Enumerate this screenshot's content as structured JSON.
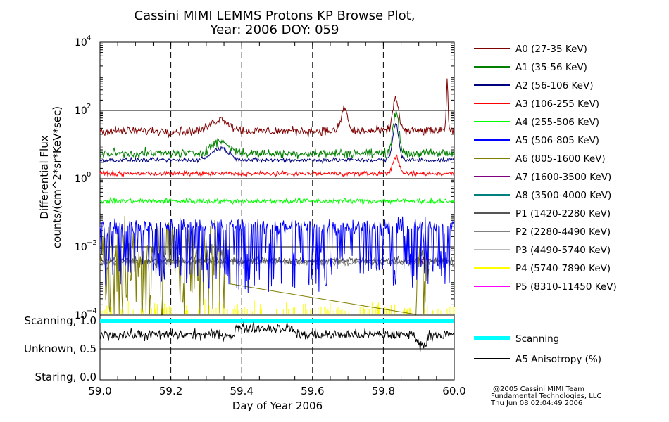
{
  "chart_data": {
    "type": "line",
    "title": "Cassini MIMI LEMMS Protons KP Browse Plot,",
    "subtitle": "Year: 2006 DOY: 059",
    "xlabel": "Day of Year 2006",
    "ylabel_line1": "Differential Flux",
    "ylabel_line2": "counts/(cm^2*sr*KeV*sec)",
    "xlim": [
      59.0,
      60.0
    ],
    "x_ticks": [
      "59.0",
      "59.2",
      "59.4",
      "59.6",
      "59.8",
      "60.0"
    ],
    "x_tick_values": [
      59.0,
      59.2,
      59.4,
      59.6,
      59.8,
      60.0
    ],
    "y_scale": "log",
    "ylim": [
      0.0001,
      10000
    ],
    "y_tick_base": "10",
    "y_tick_exponents": [
      "4",
      "2",
      "0",
      "−2",
      "−4"
    ],
    "y_tick_values": [
      10000,
      100,
      1,
      0.01,
      0.0001
    ],
    "lower_panel_labels": [
      "Scanning, 1.0",
      "Unknown, 0.5",
      "Staring, 0.0"
    ],
    "lower_panel_values": [
      1.0,
      0.5,
      0.0
    ],
    "series": [
      {
        "name": "A0 (27-35 KeV)",
        "color": "#7f0000",
        "baseline": 25,
        "spread": 0.1,
        "shape": "hump",
        "peaks": [
          [
            59.69,
            120
          ],
          [
            59.835,
            230
          ],
          [
            59.98,
            1000
          ]
        ]
      },
      {
        "name": "A1 (35-56 KeV)",
        "color": "#007f00",
        "baseline": 5.5,
        "spread": 0.1,
        "shape": "hump",
        "peaks": [
          [
            59.835,
            90
          ]
        ]
      },
      {
        "name": "A2 (56-106 KeV)",
        "color": "#00007f",
        "baseline": 3.5,
        "spread": 0.05,
        "shape": "hump",
        "peaks": [
          [
            59.835,
            40
          ]
        ]
      },
      {
        "name": "A3 (106-255 KeV)",
        "color": "#ff0000",
        "baseline": 1.4,
        "spread": 0.05,
        "shape": "flat",
        "peaks": [
          [
            59.835,
            4.5
          ]
        ]
      },
      {
        "name": "A4 (255-506 KeV)",
        "color": "#00ff00",
        "baseline": 0.22,
        "spread": 0.06,
        "shape": "flat",
        "peaks": []
      },
      {
        "name": "A5 (506-805 KeV)",
        "color": "#0000ff",
        "baseline": 0.04,
        "spread": 0.18,
        "shape": "spiky",
        "peaks": []
      },
      {
        "name": "A6 (805-1600 KeV)",
        "color": "#7f7f00",
        "baseline": 0.006,
        "spread": 0.25,
        "shape": "dropout",
        "peaks": []
      },
      {
        "name": "A7 (1600-3500 KeV)",
        "color": "#7f007f",
        "baseline": 0.004,
        "spread": 0.1,
        "shape": "late",
        "peaks": []
      },
      {
        "name": "A8 (3500-4000 KeV)",
        "color": "#007f7f",
        "baseline": null,
        "spread": 0,
        "shape": "none",
        "peaks": []
      },
      {
        "name": "P1 (1420-2280 KeV)",
        "color": "#555555",
        "baseline": 0.004,
        "spread": 0.08,
        "shape": "flat",
        "peaks": []
      },
      {
        "name": "P2 (2280-4490 KeV)",
        "color": "#808080",
        "baseline": 0.0035,
        "spread": 0.08,
        "shape": "flat",
        "peaks": []
      },
      {
        "name": "P3 (4490-5740 KeV)",
        "color": "#bbbbbb",
        "baseline": null,
        "spread": 0,
        "shape": "none",
        "peaks": []
      },
      {
        "name": "P4 (5740-7890 KeV)",
        "color": "#ffff00",
        "baseline": 0.00013,
        "spread": 0.2,
        "shape": "floor",
        "peaks": []
      },
      {
        "name": "P5 (8310-11450 KeV)",
        "color": "#ff00ff",
        "baseline": null,
        "spread": 0,
        "shape": "none",
        "peaks": []
      }
    ],
    "lower_series": [
      {
        "name": "Scanning",
        "color": "#00ffff",
        "value": 1.0
      },
      {
        "name": "A5 Anisotropy (%)",
        "color": "#000000",
        "baseline": 0.75,
        "spread": 0.07
      }
    ]
  },
  "credit": {
    "line1": "@2005 Cassini MIMI Team",
    "line2": "Fundamental Technologies, LLC",
    "line3": "Thu Jun 08 02:04:49 2006"
  }
}
